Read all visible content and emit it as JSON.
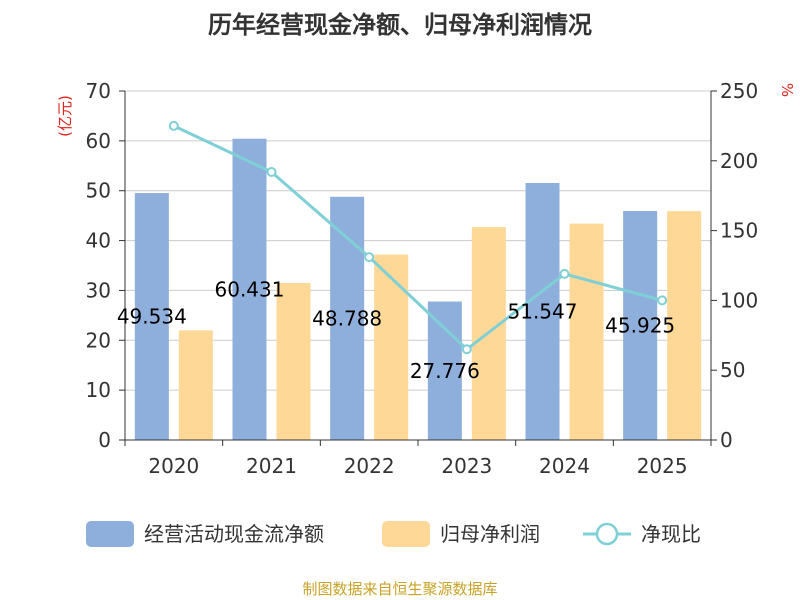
{
  "chart_data": {
    "type": "bar",
    "title": "历年经营现金净额、归母净利润情况",
    "categories": [
      "2020",
      "2021",
      "2022",
      "2023",
      "2024",
      "2025"
    ],
    "series": [
      {
        "name": "经营活动现金流净额",
        "kind": "bar",
        "axis": "left",
        "color": "#8eaedb",
        "values": [
          49.534,
          60.431,
          48.788,
          27.776,
          51.547,
          45.925
        ]
      },
      {
        "name": "归母净利润",
        "kind": "bar",
        "axis": "left",
        "color": "#fed897",
        "values": [
          22.0,
          31.5,
          37.2,
          42.7,
          43.4,
          45.9
        ]
      },
      {
        "name": "净现比",
        "kind": "line",
        "axis": "right",
        "color": "#7fd0d6",
        "values": [
          225,
          192,
          131,
          65,
          119,
          100
        ]
      }
    ],
    "data_labels": [
      "49.534",
      "60.431",
      "48.788",
      "27.776",
      "51.547",
      "45.925"
    ],
    "left_axis": {
      "label": "(亿元)",
      "ylim": [
        0,
        70
      ],
      "ticks": [
        0,
        10,
        20,
        30,
        40,
        50,
        60,
        70
      ]
    },
    "right_axis": {
      "label": "%",
      "ylim": [
        0,
        250
      ],
      "ticks": [
        0,
        50,
        100,
        150,
        200,
        250
      ]
    },
    "legend_position": "bottom",
    "grid": true
  },
  "source": "制图数据来自恒生聚源数据库"
}
